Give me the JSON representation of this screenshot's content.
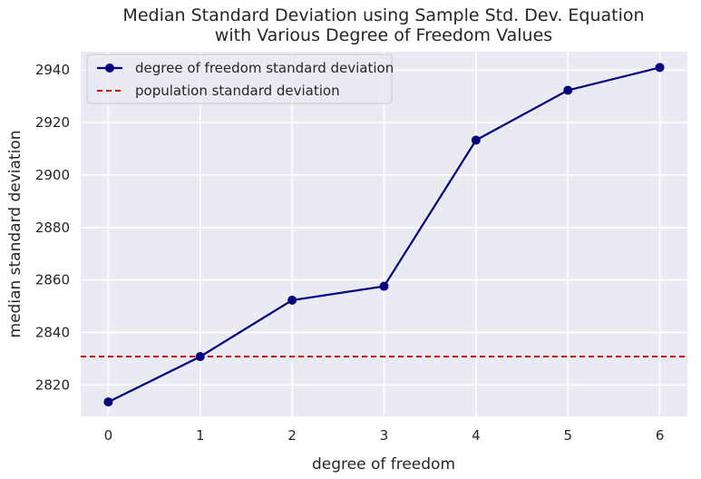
{
  "chart_data": {
    "type": "line",
    "title": [
      "Median Standard Deviation using Sample Std. Dev. Equation",
      "with Various Degree of Freedom Values"
    ],
    "xlabel": "degree of freedom",
    "ylabel": "median standard deviation",
    "x": [
      0,
      1,
      2,
      3,
      4,
      5,
      6
    ],
    "xlim": [
      -0.3,
      6.3
    ],
    "ylim": [
      2808,
      2947
    ],
    "xticks": [
      "0",
      "1",
      "2",
      "3",
      "4",
      "5",
      "6"
    ],
    "yticks": [
      "2820",
      "2840",
      "2860",
      "2880",
      "2900",
      "2920",
      "2940"
    ],
    "grid": true,
    "legend_position": "top-left",
    "series": [
      {
        "name": "degree of freedom standard deviation",
        "values": [
          2813.5,
          2830.8,
          2852.3,
          2857.6,
          2913.3,
          2932.3,
          2941.0
        ],
        "color": "#000080",
        "style": "solid",
        "marker": "circle"
      }
    ],
    "reference_lines": [
      {
        "name": "population standard deviation",
        "value": 2830.8,
        "color": "#cc0000",
        "style": "dashed"
      }
    ],
    "colors": {
      "plot_background": "#eaeaf2",
      "grid": "#ffffff"
    }
  }
}
